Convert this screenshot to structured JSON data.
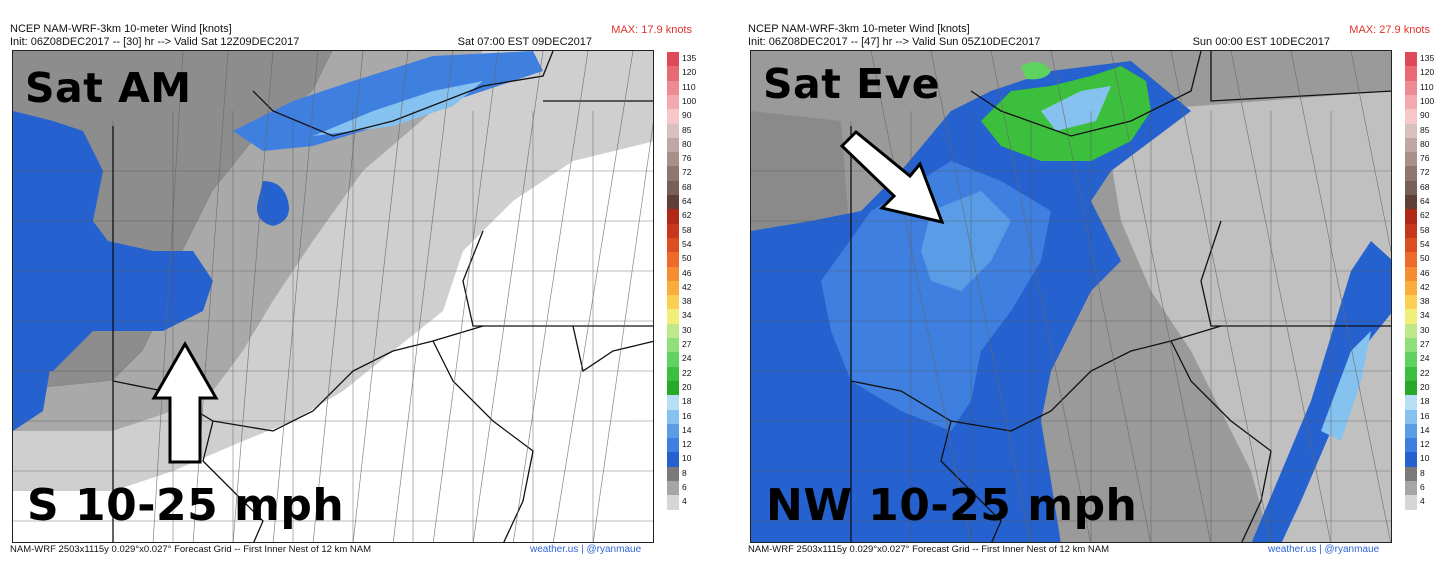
{
  "colorbar": {
    "levels": [
      "135",
      "120",
      "110",
      "100",
      "90",
      "85",
      "80",
      "76",
      "72",
      "68",
      "64",
      "62",
      "58",
      "54",
      "50",
      "46",
      "42",
      "38",
      "34",
      "30",
      "27",
      "24",
      "22",
      "20",
      "18",
      "16",
      "14",
      "12",
      "10",
      "8",
      "6",
      "4"
    ],
    "colors": [
      "#e04a58",
      "#e86a75",
      "#ee8a93",
      "#f2a9af",
      "#f6c6c9",
      "#d8c0bf",
      "#bfa8a4",
      "#a8908a",
      "#8f7770",
      "#755f58",
      "#5f3f38",
      "#b02818",
      "#c8361e",
      "#dd4d22",
      "#ee6a2a",
      "#f58d33",
      "#f8ad3d",
      "#fbcf52",
      "#f2ee7a",
      "#bde98a",
      "#8fe07a",
      "#5fd25f",
      "#3cbf3c",
      "#27a827",
      "#b8def5",
      "#86c2f0",
      "#5a9de6",
      "#3f7fe0",
      "#2561cf",
      "#7a7a7a",
      "#a6a6a6",
      "#d6d6d6"
    ]
  },
  "panels": [
    {
      "title": "NCEP NAM-WRF-3km 10-meter Wind [knots]",
      "init": "Init: 06Z08DEC2017 -- [30] hr --> Valid Sat 12Z09DEC2017",
      "max": "MAX: 17.9 knots",
      "valid_local": "Sat 07:00 EST 09DEC2017",
      "label_time": "Sat AM",
      "label_wind": "S 10-25 mph",
      "arrow_direction": "north",
      "footer": "NAM-WRF 2503x1115y 0.029°x0.027° Forecast Grid -- First Inner Nest of 12 km NAM",
      "credit": "weather.us | @ryanmaue"
    },
    {
      "title": "NCEP NAM-WRF-3km 10-meter Wind [knots]",
      "init": "Init: 06Z08DEC2017 -- [47] hr --> Valid Sun 05Z10DEC2017",
      "max": "MAX: 27.9 knots",
      "valid_local": "Sun 00:00 EST 10DEC2017",
      "label_time": "Sat Eve",
      "label_wind": "NW 10-25 mph",
      "arrow_direction": "southeast",
      "footer": "NAM-WRF 2503x1115y 0.029°x0.027° Forecast Grid -- First Inner Nest of 12 km NAM",
      "credit": "weather.us | @ryanmaue"
    }
  ]
}
